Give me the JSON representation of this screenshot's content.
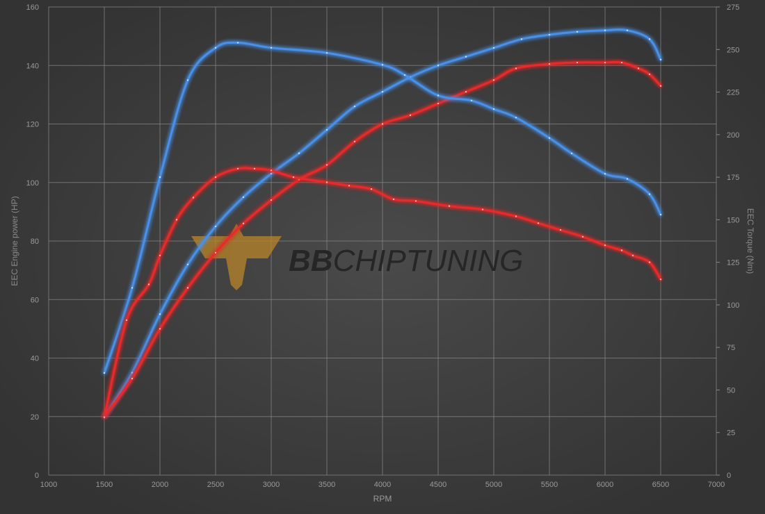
{
  "chart_data": {
    "type": "line",
    "title": "",
    "xlabel": "RPM",
    "ylabel_left": "EEC Engine power (HP)",
    "ylabel_right": "EEC Torque (Nm)",
    "xlim": [
      1000,
      7000
    ],
    "ylim_left": [
      0,
      160
    ],
    "ylim_right": [
      0,
      275
    ],
    "x_ticks": [
      1000,
      1500,
      2000,
      2500,
      3000,
      3500,
      4000,
      4500,
      5000,
      5500,
      6000,
      6500,
      7000
    ],
    "y_left_ticks": [
      0,
      20,
      40,
      60,
      80,
      100,
      120,
      140,
      160
    ],
    "y_right_ticks": [
      0,
      25,
      50,
      75,
      100,
      125,
      150,
      175,
      200,
      225,
      250,
      275
    ],
    "grid": true,
    "legend": "none",
    "watermark": "BBCHIPTUNING",
    "colors": {
      "background": "#3a3a3a",
      "grid": "#8a8a8a",
      "tuned": "#4a90e8",
      "stock": "#e82a2a",
      "text": "#9a9a9a",
      "logo_gold": "#b8862a",
      "logo_dark": "#262626"
    },
    "series": [
      {
        "axis": "left",
        "color": "#4a90e8",
        "x": [
          1500,
          1750,
          2000,
          2250,
          2500,
          2750,
          3000,
          3250,
          3500,
          3750,
          4000,
          4250,
          4500,
          4750,
          5000,
          5250,
          5500,
          5750,
          6000,
          6200,
          6400,
          6500
        ],
        "values": [
          20,
          35,
          55,
          72,
          85,
          95,
          103,
          110,
          118,
          126,
          131,
          136,
          140,
          143,
          146,
          149,
          150.5,
          151.5,
          152,
          152,
          149,
          142
        ]
      },
      {
        "axis": "left",
        "color": "#e82a2a",
        "x": [
          1500,
          1750,
          2000,
          2250,
          2500,
          2750,
          3000,
          3250,
          3500,
          3750,
          4000,
          4250,
          4500,
          4750,
          5000,
          5200,
          5500,
          5750,
          6000,
          6150,
          6300,
          6400,
          6500
        ],
        "values": [
          20,
          33,
          50,
          64,
          76,
          86,
          94,
          101,
          106,
          114,
          120,
          123,
          127,
          131,
          135,
          139,
          140.5,
          141,
          141,
          141,
          139,
          137,
          133
        ]
      },
      {
        "axis": "right",
        "color": "#4a90e8",
        "x": [
          1500,
          1750,
          2000,
          2250,
          2500,
          2700,
          3000,
          3500,
          4000,
          4200,
          4500,
          4800,
          5000,
          5200,
          5500,
          5700,
          6000,
          6200,
          6400,
          6500
        ],
        "values": [
          60,
          110,
          175,
          232,
          251,
          254,
          251,
          248,
          241,
          235,
          223,
          220,
          215,
          210,
          198,
          189,
          177,
          174,
          165,
          153
        ]
      },
      {
        "axis": "right",
        "color": "#e82a2a",
        "x": [
          1500,
          1700,
          1900,
          2000,
          2150,
          2300,
          2500,
          2700,
          2850,
          3000,
          3200,
          3500,
          3700,
          3900,
          4100,
          4300,
          4600,
          4900,
          5200,
          5400,
          5600,
          5800,
          6000,
          6150,
          6250,
          6400,
          6500
        ],
        "values": [
          34,
          91,
          112,
          129,
          150,
          163,
          175,
          180,
          180,
          179,
          175,
          172,
          170,
          168,
          162,
          161,
          158,
          156,
          152,
          148,
          144,
          140,
          135,
          132,
          129,
          125,
          115
        ]
      }
    ]
  }
}
